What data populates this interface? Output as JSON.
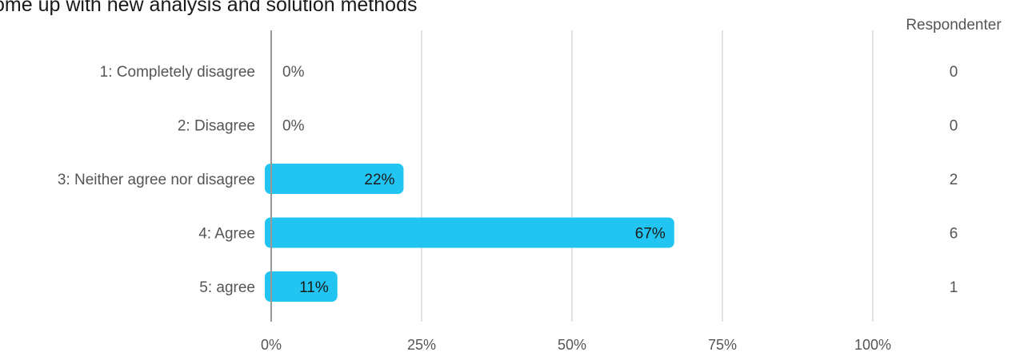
{
  "chart_data": {
    "type": "bar",
    "orientation": "horizontal",
    "title": "ome up with new analysis and solution methods",
    "categories": [
      "1: Completely disagree",
      "2: Disagree",
      "3: Neither agree nor disagree",
      "4: Agree",
      "5:  agree"
    ],
    "values": [
      0,
      0,
      22,
      67,
      11
    ],
    "value_labels": [
      "0%",
      "0%",
      "22%",
      "67%",
      "11%"
    ],
    "counts_header": "Respondenter",
    "counts": [
      "0",
      "0",
      "2",
      "6",
      "1"
    ],
    "x_ticks": [
      "0%",
      "25%",
      "50%",
      "75%",
      "100%"
    ],
    "xlim": [
      0,
      100
    ],
    "grid": true,
    "bar_color": "#22c5f1"
  }
}
